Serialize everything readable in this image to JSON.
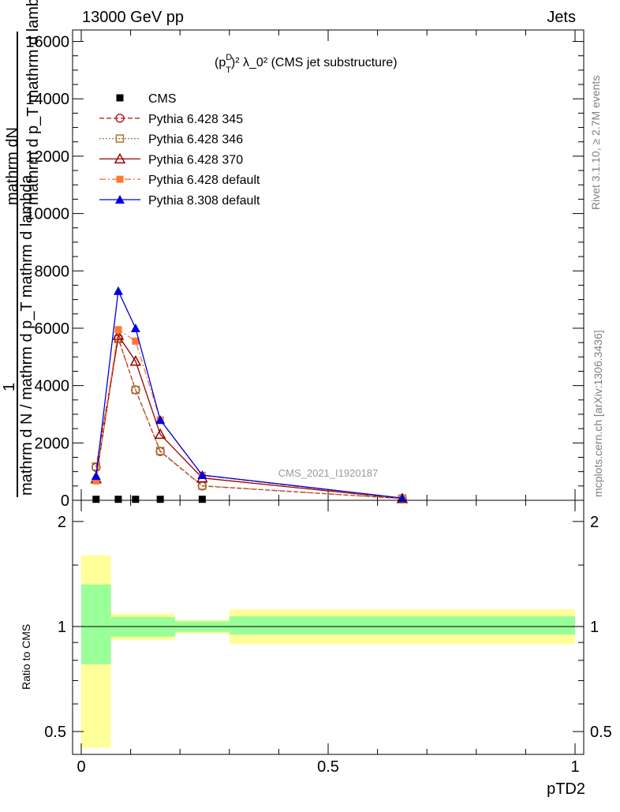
{
  "header": {
    "left": "13000 GeV pp",
    "right": "Jets"
  },
  "side_labels": {
    "rivet": "Rivet 3.1.10, ≥ 2.7M events",
    "mcplots": "mcplots.cern.ch [arXiv:1306.3436]"
  },
  "watermark": "CMS_2021_I1920187",
  "chart_data": [
    {
      "type": "line",
      "title_parts": {
        "p": "(p",
        "sup_d": "D",
        "sub_t": "T",
        "rest": ")² λ_0² (CMS jet substructure)"
      },
      "ylabel_lines": [
        "mathrm dN",
        "mathrm d p_T mathrm d lambda",
        "1",
        "mathrm d N / mathrm d p_T mathrm d lambda"
      ],
      "xlim": [
        0,
        1
      ],
      "ylim": [
        0,
        16400
      ],
      "ytick_values": [
        0,
        2000,
        4000,
        6000,
        8000,
        10000,
        12000,
        14000,
        16000
      ],
      "ytick_labels": [
        "0",
        "2000",
        "4000",
        "6000",
        "8000",
        "10000",
        "12000",
        "14000",
        "16000"
      ],
      "legend_position": "top-left",
      "series": [
        {
          "name": "CMS",
          "color": "#000000",
          "marker": "square-filled",
          "dash": "",
          "x": [
            0.03,
            0.075,
            0.11,
            0.16,
            0.245
          ],
          "y": [
            35,
            35,
            35,
            35,
            35
          ]
        },
        {
          "name": "Pythia 6.428 345",
          "color": "#bb2222",
          "marker": "circle-open",
          "dash": "6,3",
          "x": [
            0.03,
            0.075,
            0.11,
            0.16,
            0.245,
            0.65
          ],
          "y": [
            1150,
            5650,
            3850,
            1700,
            500,
            60
          ]
        },
        {
          "name": "Pythia 6.428 346",
          "color": "#aa7733",
          "marker": "square-open",
          "dash": "2,2",
          "x": [
            0.03,
            0.075,
            0.11,
            0.16,
            0.245,
            0.65
          ],
          "y": [
            1180,
            5620,
            3850,
            1720,
            510,
            60
          ]
        },
        {
          "name": "Pythia 6.428 370",
          "color": "#990000",
          "marker": "triangle-open",
          "dash": "",
          "x": [
            0.03,
            0.075,
            0.11,
            0.16,
            0.245,
            0.65
          ],
          "y": [
            750,
            5750,
            4850,
            2300,
            780,
            60
          ]
        },
        {
          "name": "Pythia 6.428 default",
          "color": "#ff7733",
          "marker": "square-filled",
          "dash": "8,3,2,3",
          "x": [
            0.03,
            0.075,
            0.11,
            0.16,
            0.245,
            0.65
          ],
          "y": [
            680,
            5950,
            5550,
            2800,
            870,
            60
          ]
        },
        {
          "name": "Pythia 8.308 default",
          "color": "#0000dd",
          "marker": "triangle-filled",
          "dash": "",
          "x": [
            0.03,
            0.075,
            0.11,
            0.16,
            0.245,
            0.65
          ],
          "y": [
            850,
            7300,
            6000,
            2800,
            880,
            80
          ]
        }
      ]
    },
    {
      "type": "area",
      "ylabel": "Ratio to CMS",
      "xlabel": "pTD2",
      "scale": "log",
      "xlim": [
        0,
        1
      ],
      "ylim": [
        0.43,
        2.3
      ],
      "ytick_values": [
        0.5,
        1,
        2
      ],
      "ytick_labels": [
        "0.5",
        "1",
        "2"
      ],
      "xtick_values": [
        0,
        0.5,
        1
      ],
      "xtick_labels": [
        "0",
        "0.5",
        "1"
      ],
      "bin_edges": [
        0,
        0.06,
        0.19,
        0.3,
        1.0
      ],
      "band_stat": {
        "color": "#99ff99",
        "lo": [
          0.78,
          0.935,
          0.965,
          0.948
        ],
        "hi": [
          1.32,
          1.065,
          1.035,
          1.07
        ]
      },
      "band_total": {
        "color": "#ffff99",
        "lo": [
          0.45,
          0.915,
          0.955,
          0.89
        ],
        "hi": [
          1.6,
          1.09,
          1.045,
          1.12
        ]
      },
      "ratio_line_y": 1
    }
  ]
}
